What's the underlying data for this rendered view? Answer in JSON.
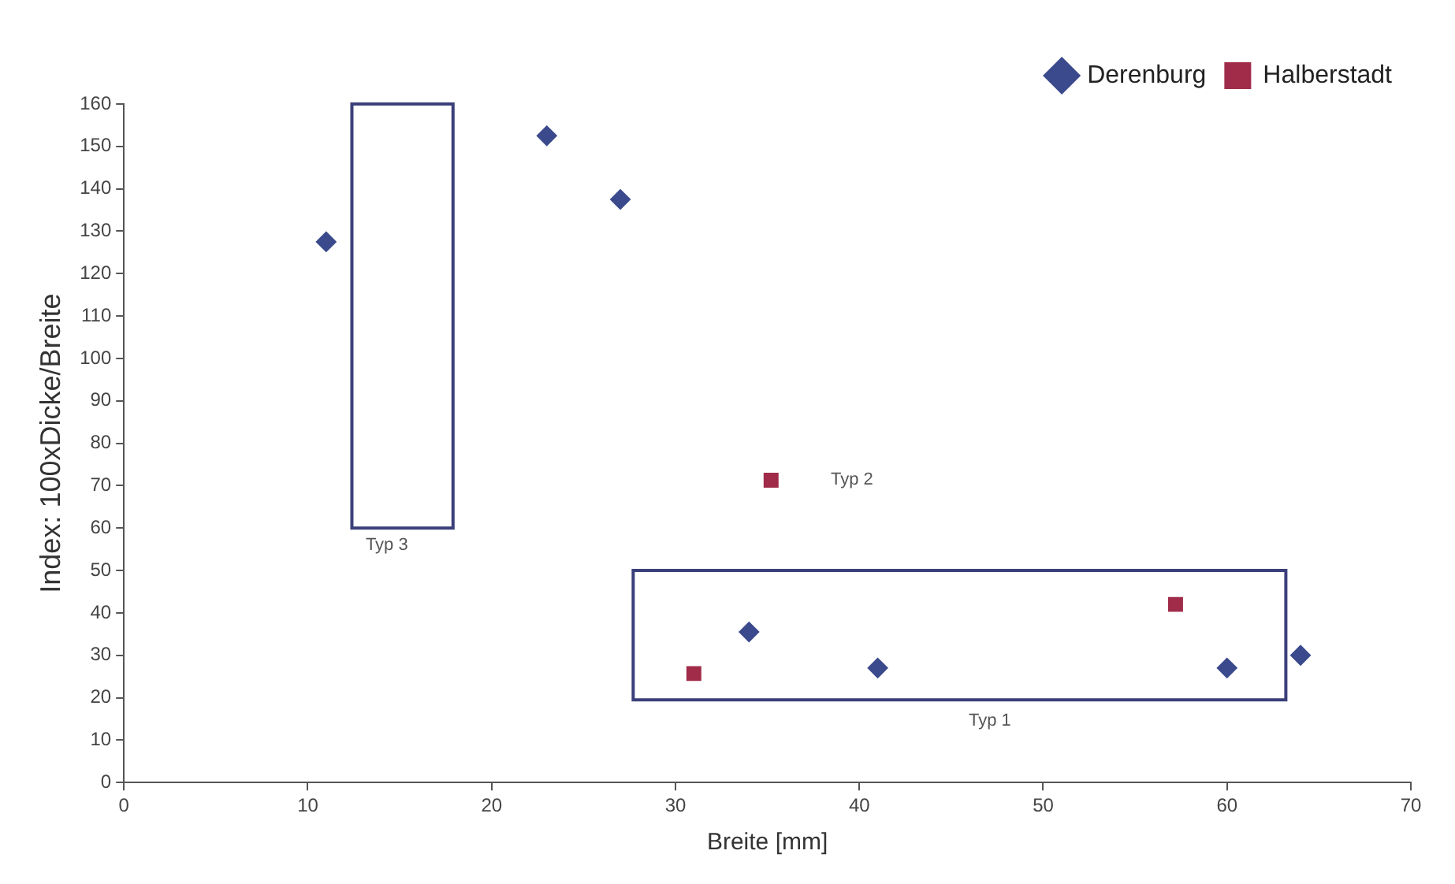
{
  "chart_data": {
    "type": "scatter",
    "xlabel": "Breite [mm]",
    "ylabel": "Index: 100xDicke/Breite",
    "xlim": [
      0,
      70
    ],
    "xticks": [
      0,
      10,
      20,
      30,
      40,
      50,
      60,
      70
    ],
    "ylim": [
      0,
      160
    ],
    "yticks": [
      0,
      10,
      20,
      30,
      40,
      50,
      60,
      70,
      80,
      90,
      100,
      110,
      120,
      130,
      140,
      150,
      160
    ],
    "grid": false,
    "legend": "top right",
    "series": [
      {
        "name": "Derenburg",
        "color": "#3b4a8c",
        "marker": "diamond",
        "x": [
          11,
          23,
          27,
          34,
          41,
          60,
          64
        ],
        "values": [
          127.5,
          152.5,
          137.5,
          35.5,
          27,
          27,
          30
        ]
      },
      {
        "name": "Halberstadt",
        "color": "#a02c4a",
        "marker": "square",
        "x": [
          31,
          35.2,
          57.2
        ],
        "values": [
          25.7,
          71.3,
          42
        ]
      }
    ],
    "annotations": [
      "Typ 3",
      "Typ 2",
      "Typ 1"
    ]
  }
}
